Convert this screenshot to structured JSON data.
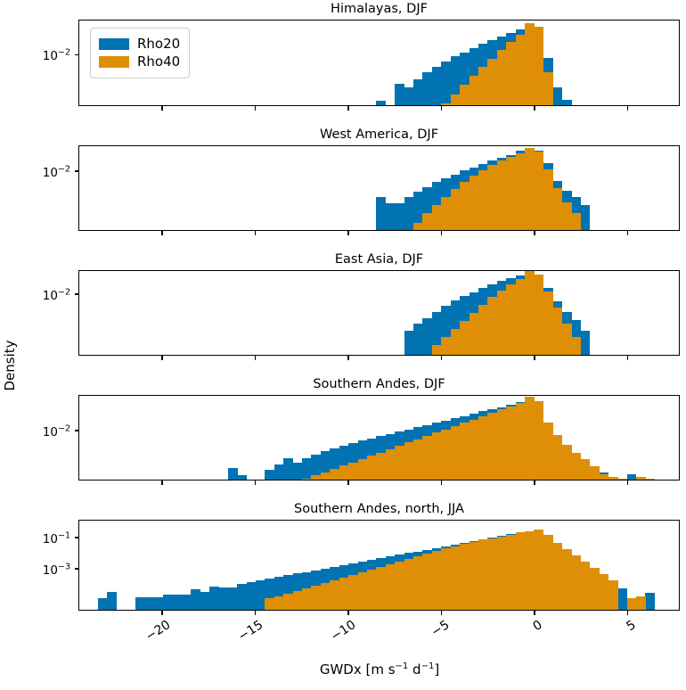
{
  "figure": {
    "ylabel": "Density",
    "xlabel": {
      "pre": "GWDx [m s",
      "sup1": "−1",
      "mid": " d",
      "sup2": "−1",
      "post": "]"
    },
    "colors": {
      "rho20": "#0173b2",
      "rho40": "#de8f05",
      "spine": "#000000"
    },
    "legend": {
      "items": [
        {
          "label": "Rho20",
          "color_key": "rho20"
        },
        {
          "label": "Rho40",
          "color_key": "rho40"
        }
      ]
    },
    "x_axis": {
      "min": -24.5,
      "max": 7.8,
      "ticks": [
        -20,
        -15,
        -10,
        -5,
        0,
        5
      ],
      "tick_labels": [
        "−20",
        "−15",
        "−10",
        "−5",
        "0",
        "5"
      ]
    }
  },
  "chart_data": [
    {
      "type": "histogram",
      "title": "Himalayas, DJF",
      "yscale": "log",
      "ylim_log10": [
        -2.95,
        -1.35
      ],
      "yticks": [
        {
          "value_exp10": -2,
          "base": "10",
          "exp_label": "−2"
        }
      ],
      "bin_width": 0.5,
      "series": [
        {
          "name": "Rho20",
          "color_key": "rho20",
          "bin_start": -8.5,
          "densities": [
            0.00135,
            0,
            0.0028,
            0.0024,
            0.0035,
            0.0047,
            0.006,
            0.0076,
            0.0095,
            0.0112,
            0.0135,
            0.0162,
            0.019,
            0.0224,
            0.0263,
            0.0302,
            0.0372,
            0.031,
            0.0089,
            0.0024,
            0.0014
          ]
        },
        {
          "name": "Rho40",
          "color_key": "rho40",
          "bin_start": -5.0,
          "densities": [
            0.0012,
            0.0018,
            0.0027,
            0.004,
            0.006,
            0.0085,
            0.0122,
            0.0173,
            0.0245,
            0.0405,
            0.034,
            0.0048
          ]
        }
      ]
    },
    {
      "type": "histogram",
      "title": "West America, DJF",
      "yscale": "log",
      "ylim_log10": [
        -3.4,
        -1.4
      ],
      "yticks": [
        {
          "value_exp10": -2,
          "base": "10",
          "exp_label": "−2"
        }
      ],
      "bin_width": 0.5,
      "series": [
        {
          "name": "Rho20",
          "color_key": "rho20",
          "bin_start": -8.5,
          "densities": [
            0.0025,
            0.0017,
            0.0017,
            0.0024,
            0.0032,
            0.0042,
            0.0055,
            0.007,
            0.0085,
            0.0105,
            0.0125,
            0.015,
            0.018,
            0.021,
            0.0245,
            0.0305,
            0.036,
            0.031,
            0.016,
            0.006,
            0.0035,
            0.0025,
            0.0016
          ]
        },
        {
          "name": "Rho40",
          "color_key": "rho40",
          "bin_start": -6.5,
          "densities": [
            0.0006,
            0.001,
            0.0016,
            0.0025,
            0.0038,
            0.0055,
            0.0078,
            0.0105,
            0.014,
            0.018,
            0.0225,
            0.027,
            0.0355,
            0.029,
            0.011,
            0.004,
            0.0018,
            0.001
          ]
        }
      ]
    },
    {
      "type": "histogram",
      "title": "East Asia, DJF",
      "yscale": "log",
      "ylim_log10": [
        -3.55,
        -1.4
      ],
      "yticks": [
        {
          "value_exp10": -2,
          "base": "10",
          "exp_label": "−2"
        }
      ],
      "bin_width": 0.5,
      "series": [
        {
          "name": "Rho20",
          "color_key": "rho20",
          "bin_start": -7.0,
          "densities": [
            0.0012,
            0.0018,
            0.0025,
            0.0035,
            0.005,
            0.007,
            0.009,
            0.0115,
            0.0145,
            0.018,
            0.022,
            0.026,
            0.03,
            0.0375,
            0.031,
            0.015,
            0.0065,
            0.0035,
            0.0022,
            0.0012
          ]
        },
        {
          "name": "Rho40",
          "color_key": "rho40",
          "bin_start": -5.5,
          "densities": [
            0.0005,
            0.0008,
            0.0013,
            0.0021,
            0.0034,
            0.0055,
            0.0085,
            0.0125,
            0.018,
            0.025,
            0.0405,
            0.033,
            0.012,
            0.0045,
            0.0018,
            0.0008
          ]
        }
      ]
    },
    {
      "type": "histogram",
      "title": "Southern Andes, DJF",
      "yscale": "log",
      "ylim_log10": [
        -2.9,
        -1.35
      ],
      "yticks": [
        {
          "value_exp10": -2,
          "base": "10",
          "exp_label": "−2"
        }
      ],
      "bin_width": 0.5,
      "series": [
        {
          "name": "Rho20",
          "color_key": "rho20",
          "bin_start": -16.5,
          "densities": [
            0.0021,
            0.0015,
            0,
            0,
            0.0019,
            0.0024,
            0.0031,
            0.0026,
            0.0031,
            0.0036,
            0.0042,
            0.0048,
            0.0054,
            0.006,
            0.0066,
            0.0073,
            0.008,
            0.0088,
            0.0097,
            0.0107,
            0.0118,
            0.013,
            0.0143,
            0.0157,
            0.0173,
            0.019,
            0.0209,
            0.023,
            0.0253,
            0.0278,
            0.0306,
            0.0337,
            0.0408,
            0.034,
            0.012,
            0.005,
            0.0033,
            0.0028,
            0.0024,
            0.002,
            0.0017,
            0,
            0,
            0.0016
          ]
        },
        {
          "name": "Rho40",
          "color_key": "rho40",
          "bin_start": -12.5,
          "densities": [
            0.0013,
            0.0015,
            0.0017,
            0.002,
            0.0023,
            0.0026,
            0.003,
            0.0035,
            0.004,
            0.0046,
            0.0053,
            0.0061,
            0.007,
            0.0081,
            0.0093,
            0.0107,
            0.0123,
            0.0142,
            0.0163,
            0.0188,
            0.0216,
            0.0249,
            0.0287,
            0.033,
            0.0438,
            0.036,
            0.0145,
            0.0085,
            0.0055,
            0.004,
            0.003,
            0.0022,
            0.0016,
            0.0014,
            0.0013,
            0,
            0.0014,
            0.0013
          ]
        }
      ]
    },
    {
      "type": "histogram",
      "title": "Southern Andes, north, JJA",
      "yscale": "log",
      "ylim_log10": [
        -5.7,
        0.15
      ],
      "yticks": [
        {
          "value_exp10": -1,
          "base": "10",
          "exp_label": "−1"
        },
        {
          "value_exp10": -3,
          "base": "10",
          "exp_label": "−3"
        }
      ],
      "bin_width": 0.5,
      "series": [
        {
          "name": "Rho20",
          "color_key": "rho20",
          "bin_start": -23.5,
          "densities": [
            1.2e-05,
            2.8e-05,
            0,
            0,
            1.4e-05,
            1.4e-05,
            1.4e-05,
            2e-05,
            2e-05,
            2e-05,
            4.5e-05,
            3e-05,
            7e-05,
            6e-05,
            6e-05,
            0.0001,
            0.00013,
            0.00017,
            0.00022,
            0.00028,
            0.00036,
            0.00047,
            0.00061,
            0.00079,
            0.00102,
            0.00132,
            0.0017,
            0.0022,
            0.00285,
            0.0037,
            0.0048,
            0.0062,
            0.008,
            0.0104,
            0.0134,
            0.0174,
            0.0225,
            0.029,
            0.0376,
            0.0487,
            0.063,
            0.0815,
            0.1055,
            0.1365,
            0.1766,
            0.24,
            0.3,
            0.33,
            0.1,
            0.02,
            0.006,
            0.002,
            0.0008,
            0.0003,
            0.00012,
            4e-05,
            5e-05,
            0,
            0,
            2.5e-05
          ]
        },
        {
          "name": "Rho40",
          "color_key": "rho40",
          "bin_start": -14.5,
          "densities": [
            1.1e-05,
            1.6e-05,
            2.4e-05,
            3.6e-05,
            5.4e-05,
            8e-05,
            0.00012,
            0.00018,
            0.00027,
            0.0004,
            0.0006,
            0.0009,
            0.00135,
            0.002,
            0.003,
            0.0044,
            0.0065,
            0.0095,
            0.014,
            0.0205,
            0.0295,
            0.042,
            0.059,
            0.082,
            0.095,
            0.13,
            0.175,
            0.235,
            0.3,
            0.38,
            0.155,
            0.052,
            0.019,
            0.0075,
            0.003,
            0.0012,
            0.00045,
            0.00016,
            0,
            1.2e-05,
            1.6e-05
          ]
        }
      ]
    }
  ]
}
